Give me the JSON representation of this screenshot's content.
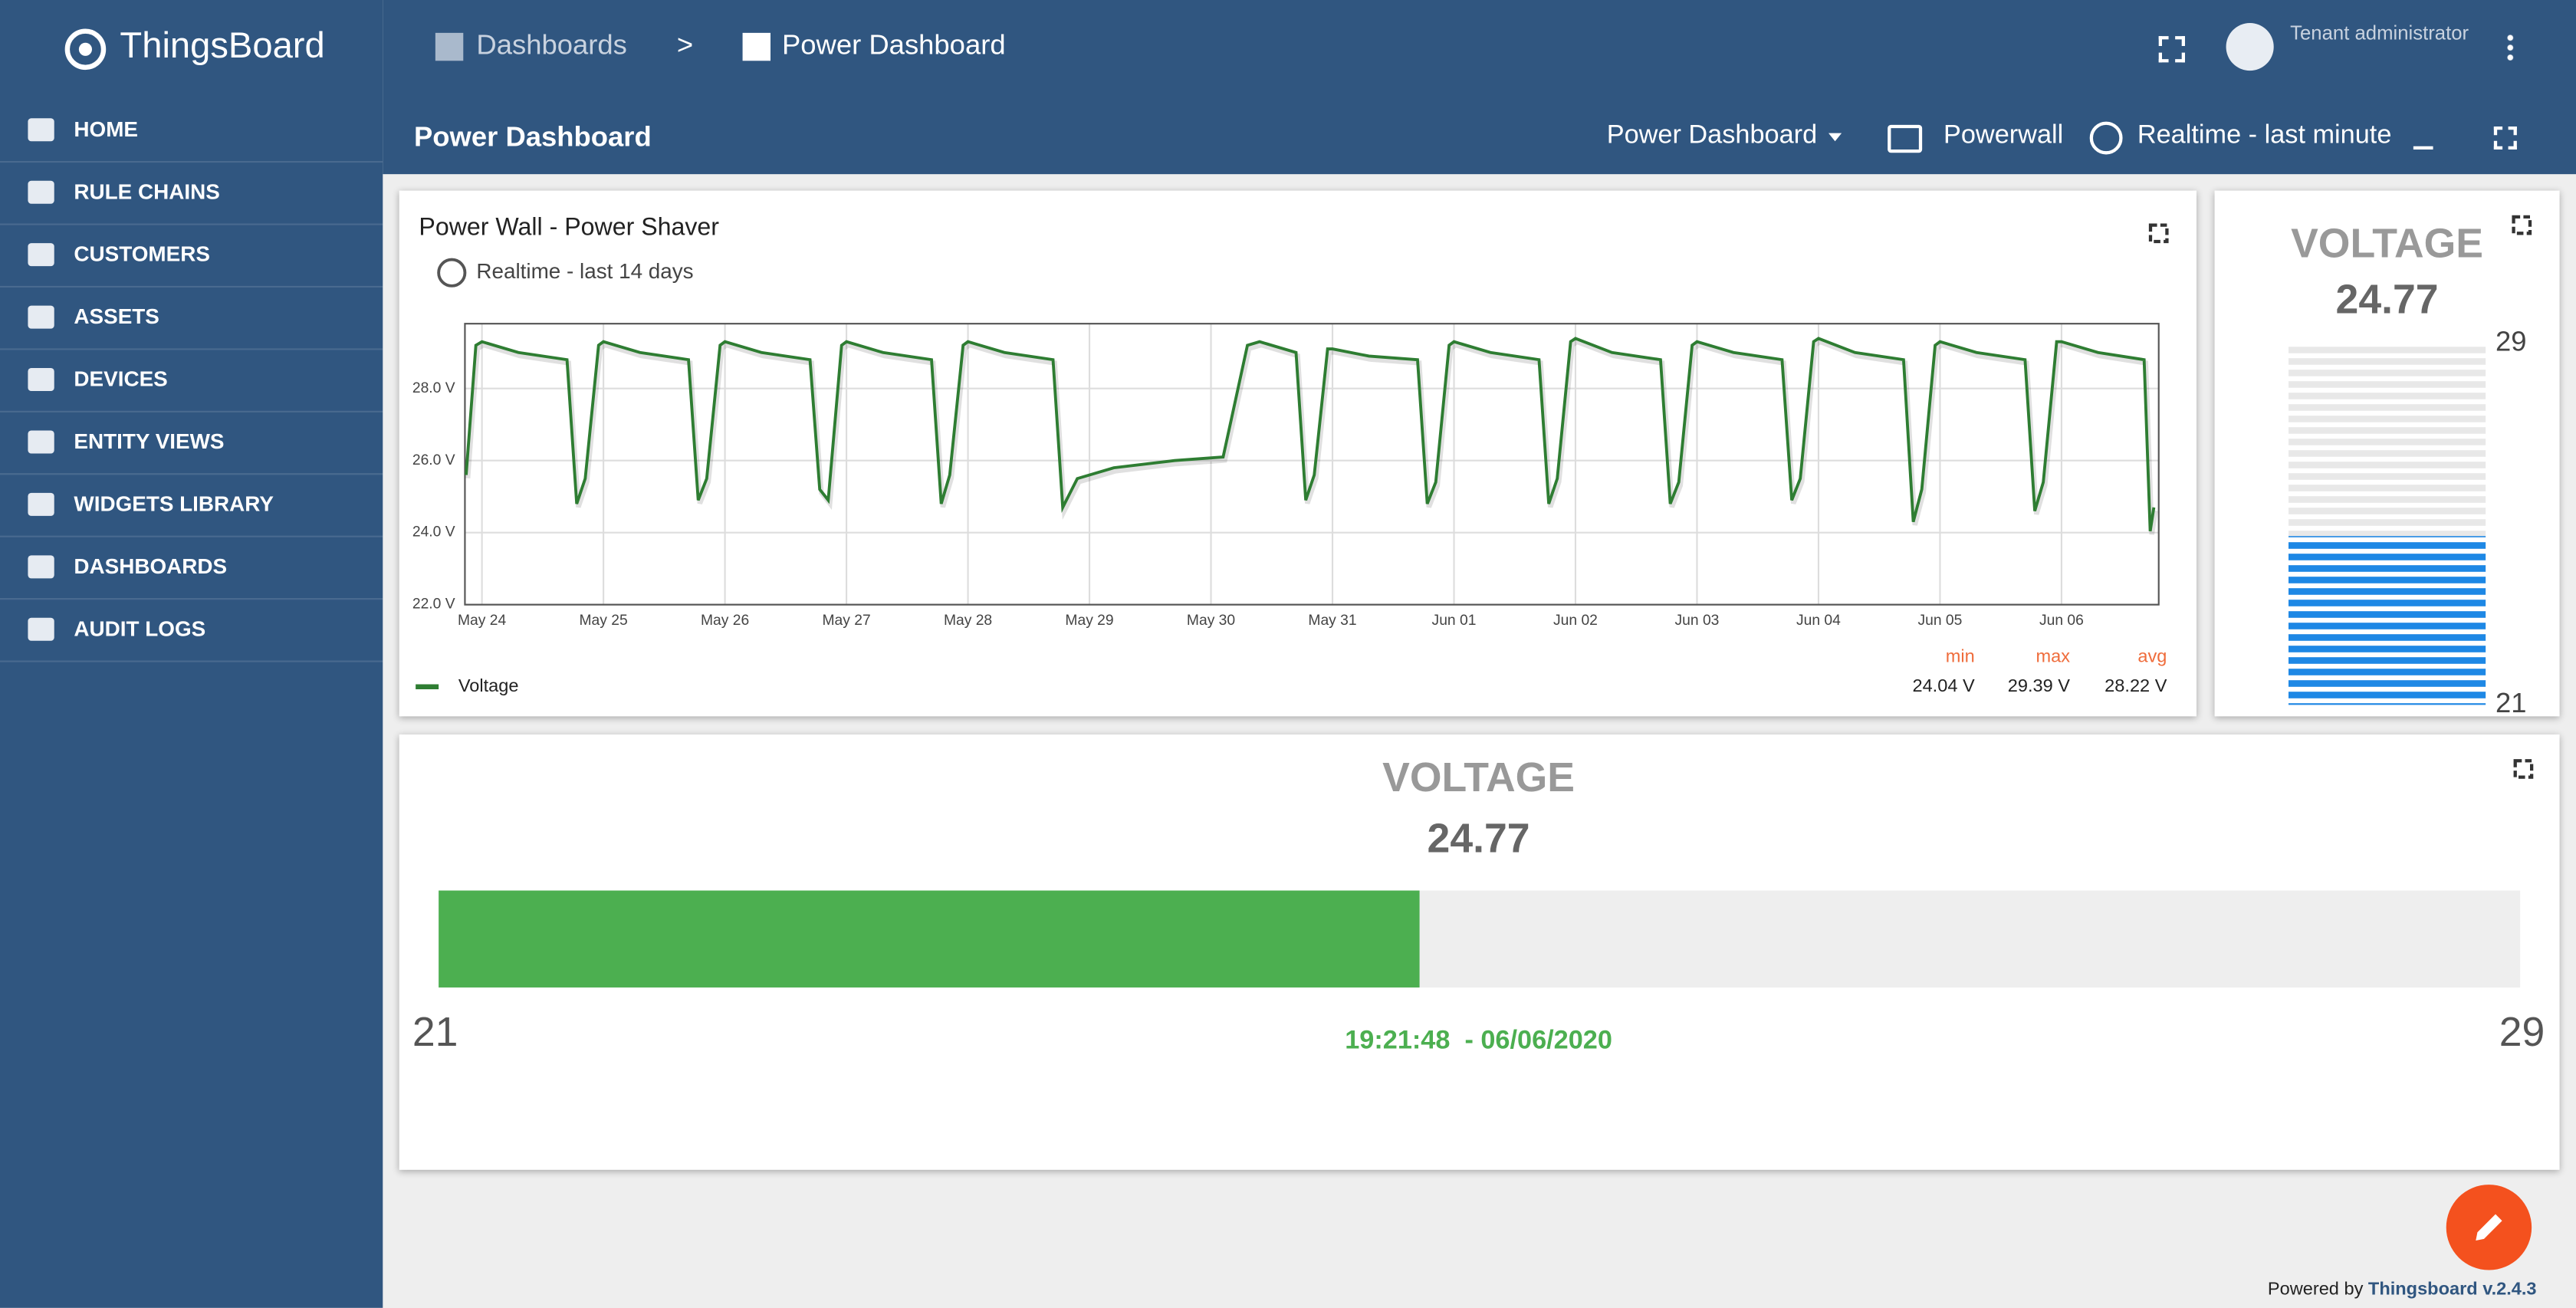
{
  "sidebar": {
    "logo": "ThingsBoard",
    "items": [
      "HOME",
      "RULE CHAINS",
      "CUSTOMERS",
      "ASSETS",
      "DEVICES",
      "ENTITY VIEWS",
      "WIDGETS LIBRARY",
      "DASHBOARDS",
      "AUDIT LOGS"
    ]
  },
  "header": {
    "breadcrumbs": [
      "Dashboards",
      ">",
      "Power Dashboard"
    ],
    "user_role": "Tenant administrator"
  },
  "toolbar": {
    "title": "Power Dashboard",
    "dashboard_select": "Power Dashboard",
    "entity": "Powerwall",
    "timewindow": "Realtime - last minute"
  },
  "chart_data": {
    "type": "line",
    "title": "Power Wall - Power Shaver",
    "subtitle": "Realtime - last 14 days",
    "x": [
      -0.13,
      -0.05,
      0,
      0.3,
      0.7,
      0.78,
      0.85,
      0.96,
      1,
      1.3,
      1.7,
      1.78,
      1.85,
      1.96,
      2,
      2.3,
      2.7,
      2.78,
      2.85,
      2.96,
      3,
      3.3,
      3.7,
      3.78,
      3.85,
      3.96,
      4,
      4.3,
      4.7,
      4.78,
      4.9,
      5.2,
      5.7,
      6.1,
      6.3,
      6.4,
      6.7,
      6.78,
      6.85,
      6.96,
      7,
      7.3,
      7.7,
      7.78,
      7.85,
      7.96,
      8,
      8.3,
      8.7,
      8.78,
      8.85,
      8.96,
      9,
      9.3,
      9.7,
      9.78,
      9.85,
      9.96,
      10,
      10.3,
      10.7,
      10.78,
      10.85,
      10.96,
      11,
      11.3,
      11.7,
      11.78,
      11.85,
      11.96,
      12,
      12.3,
      12.7,
      12.78,
      12.85,
      12.96,
      13,
      13.3,
      13.68,
      13.73,
      13.76
    ],
    "series": [
      {
        "name": "Voltage",
        "color": "#2e7d32",
        "values": [
          25.6,
          29.2,
          29.3,
          29.0,
          28.8,
          24.8,
          25.5,
          29.2,
          29.3,
          29.0,
          28.8,
          24.9,
          25.5,
          29.2,
          29.3,
          29.0,
          28.8,
          25.2,
          24.9,
          29.2,
          29.3,
          29.0,
          28.8,
          24.8,
          25.6,
          29.2,
          29.3,
          29.0,
          28.8,
          24.7,
          25.5,
          25.8,
          26.0,
          26.1,
          29.2,
          29.3,
          29.0,
          24.9,
          25.6,
          29.1,
          29.1,
          28.9,
          28.8,
          24.8,
          25.4,
          29.2,
          29.3,
          29.0,
          28.8,
          24.8,
          25.5,
          29.3,
          29.39,
          29.0,
          28.8,
          24.8,
          25.4,
          29.2,
          29.3,
          29.0,
          28.8,
          24.9,
          25.5,
          29.3,
          29.39,
          29.0,
          28.8,
          24.3,
          25.2,
          29.2,
          29.3,
          29.0,
          28.8,
          24.6,
          25.4,
          29.3,
          29.3,
          29.0,
          28.8,
          24.04,
          24.7
        ]
      }
    ],
    "xlim": [
      -0.14,
      13.8
    ],
    "ylim": [
      22,
      29.8
    ],
    "xticks": [
      {
        "value": 0,
        "label": "May 24"
      },
      {
        "value": 1,
        "label": "May 25"
      },
      {
        "value": 2,
        "label": "May 26"
      },
      {
        "value": 3,
        "label": "May 27"
      },
      {
        "value": 4,
        "label": "May 28"
      },
      {
        "value": 5,
        "label": "May 29"
      },
      {
        "value": 6,
        "label": "May 30"
      },
      {
        "value": 7,
        "label": "May 31"
      },
      {
        "value": 8,
        "label": "Jun 01"
      },
      {
        "value": 9,
        "label": "Jun 02"
      },
      {
        "value": 10,
        "label": "Jun 03"
      },
      {
        "value": 11,
        "label": "Jun 04"
      },
      {
        "value": 12,
        "label": "Jun 05"
      },
      {
        "value": 13,
        "label": "Jun 06"
      }
    ],
    "yticks": [
      {
        "value": 22,
        "label": "22.0 V"
      },
      {
        "value": 24,
        "label": "24.0 V"
      },
      {
        "value": 26,
        "label": "26.0 V"
      },
      {
        "value": 28,
        "label": "28.0 V"
      }
    ],
    "grid": true,
    "stats": {
      "labels": [
        "min",
        "max",
        "avg"
      ],
      "values": [
        "24.04 V",
        "29.39 V",
        "28.22 V"
      ]
    }
  },
  "gauges": [
    {
      "type": "vertical-bar",
      "title": "VOLTAGE",
      "value": 24.77,
      "min": 21,
      "max": 29,
      "color": "#1e88e5"
    },
    {
      "type": "horizontal-bar",
      "title": "VOLTAGE",
      "value": 24.77,
      "min": 21,
      "max": 29,
      "color": "#4caf50",
      "timestamp": "19:21:48  - 06/06/2020"
    }
  ],
  "footer": {
    "text": "Powered by",
    "link": "Thingsboard v.2.4.3"
  }
}
